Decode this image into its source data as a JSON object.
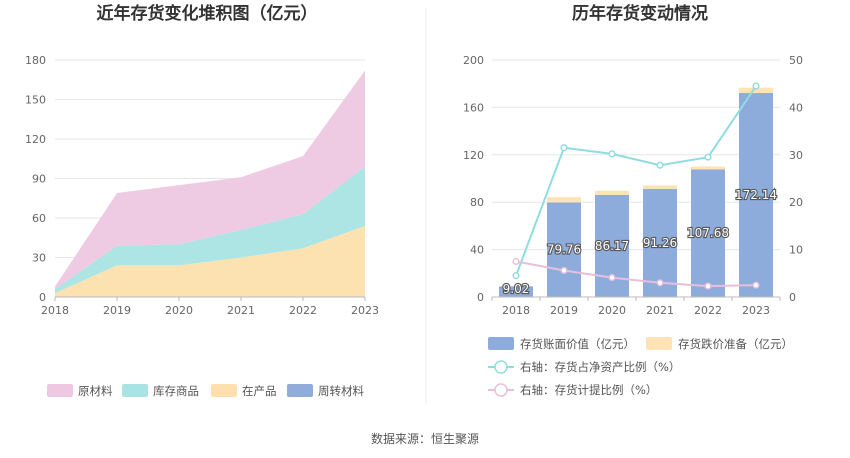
{
  "source_label": "数据来源：恒生聚源",
  "chart_data": [
    {
      "type": "area",
      "stacked": true,
      "title": "近年存货变化堆积图（亿元）",
      "categories": [
        "2018",
        "2019",
        "2020",
        "2021",
        "2022",
        "2023"
      ],
      "ylim": [
        0,
        180
      ],
      "yticks": [
        0,
        30,
        60,
        90,
        120,
        150,
        180
      ],
      "grid": true,
      "legend_position": "bottom",
      "series": [
        {
          "name": "原材料",
          "color": "#eec8e2",
          "values": [
            2,
            40,
            45,
            40,
            44,
            73
          ]
        },
        {
          "name": "库存商品",
          "color": "#a9e3e3",
          "values": [
            3,
            15,
            16,
            21,
            26,
            45
          ]
        },
        {
          "name": "在产品",
          "color": "#fde0ad",
          "values": [
            3,
            24,
            24,
            30,
            37,
            54
          ]
        },
        {
          "name": "周转材料",
          "color": "#90acd9",
          "values": [
            0,
            0,
            0,
            0,
            0,
            0
          ]
        }
      ]
    },
    {
      "type": "bar",
      "title": "历年存货变动情况",
      "categories": [
        "2018",
        "2019",
        "2020",
        "2021",
        "2022",
        "2023"
      ],
      "ylim": [
        0,
        200
      ],
      "yticks": [
        0,
        40,
        80,
        120,
        160,
        200
      ],
      "y2lim": [
        0,
        50
      ],
      "y2ticks": [
        0,
        10,
        20,
        30,
        40,
        50
      ],
      "grid": true,
      "legend_position": "bottom",
      "series": [
        {
          "name": "存货账面价值（亿元）",
          "kind": "bar",
          "axis": "left",
          "color": "#8eacdb",
          "values": [
            9.02,
            79.76,
            86.17,
            91.26,
            107.68,
            172.14
          ],
          "labels": [
            "9.02",
            "79.76",
            "86.17",
            "91.26",
            "107.68",
            "172.14"
          ]
        },
        {
          "name": "存货跌价准备（亿元）",
          "kind": "bar",
          "axis": "left",
          "stack": true,
          "color": "#fde3b5",
          "values": [
            0.3,
            4.5,
            3.5,
            3.0,
            2.5,
            4.5
          ]
        },
        {
          "name": "右轴：存货占净资产比例（%）",
          "kind": "line",
          "axis": "right",
          "color": "#8fdde0",
          "values": [
            4.5,
            31.5,
            30.2,
            27.8,
            29.5,
            44.5
          ]
        },
        {
          "name": "右轴：存货计提比例（%）",
          "kind": "line",
          "axis": "right",
          "color": "#e7bfdc",
          "values": [
            7.5,
            5.6,
            4.1,
            3.0,
            2.3,
            2.5
          ]
        }
      ]
    }
  ]
}
